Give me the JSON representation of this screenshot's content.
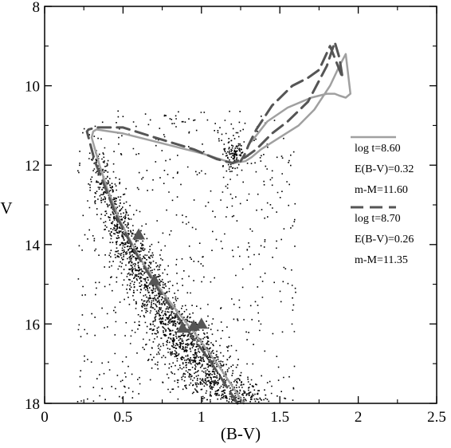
{
  "chart_data": {
    "type": "scatter",
    "title": "",
    "xlabel": "(B-V)",
    "ylabel": "V",
    "xlim": [
      0,
      2.5
    ],
    "ylim": [
      18,
      8
    ],
    "y_inverted": true,
    "grid": false,
    "legend_position": "right",
    "x_ticks": [
      0,
      0.5,
      1,
      1.5,
      2,
      2.5
    ],
    "x_tick_labels": [
      "0",
      "0.5",
      "1",
      "1.5",
      "2",
      "2.5"
    ],
    "y_ticks": [
      8,
      10,
      12,
      14,
      16,
      18
    ],
    "y_tick_labels": [
      "8",
      "10",
      "12",
      "14",
      "16",
      "18"
    ],
    "colors": {
      "isochrone_1": "#a0a0a0",
      "isochrone_2": "#555555",
      "stars": "#000000",
      "triangles": "#555555"
    },
    "stars": {
      "count": 2600,
      "main_sequence_ridge": [
        [
          0.3,
          11.2
        ],
        [
          0.38,
          12.5
        ],
        [
          0.5,
          13.7
        ],
        [
          0.62,
          14.7
        ],
        [
          0.75,
          15.6
        ],
        [
          0.9,
          16.5
        ],
        [
          1.05,
          17.3
        ],
        [
          1.25,
          18.0
        ]
      ],
      "red_clump_center": [
        1.2,
        11.7
      ]
    },
    "series": [
      {
        "legend": [
          "log t=8.60",
          "E(B-V)=0.32",
          "m-M=11.60"
        ],
        "style": "solid",
        "x": [
          1.27,
          1.1,
          0.95,
          0.75,
          0.6,
          0.48,
          0.4,
          0.35,
          0.3,
          0.31,
          0.33,
          0.5,
          0.75,
          1.0,
          1.2,
          1.28,
          1.32,
          1.38,
          1.5,
          1.62,
          1.72,
          1.82,
          1.88,
          1.92,
          1.95,
          1.92,
          1.88,
          1.85,
          1.8,
          1.7,
          1.55,
          1.42,
          1.32
        ],
        "y": [
          18.0,
          17.0,
          16.2,
          15.2,
          14.3,
          13.4,
          12.6,
          12.0,
          11.3,
          11.15,
          11.1,
          11.2,
          11.45,
          11.7,
          11.95,
          11.9,
          11.8,
          11.6,
          11.3,
          11.0,
          10.6,
          10.0,
          9.5,
          9.2,
          10.2,
          10.3,
          10.25,
          10.2,
          10.2,
          10.3,
          10.55,
          10.9,
          11.4
        ]
      },
      {
        "legend": [
          "log t=8.70",
          "E(B-V)=0.26",
          "m-M=11.35"
        ],
        "style": "dashed",
        "x": [
          1.23,
          1.05,
          0.9,
          0.72,
          0.58,
          0.46,
          0.38,
          0.32,
          0.27,
          0.28,
          0.33,
          0.5,
          0.7,
          0.95,
          1.1,
          1.2,
          1.28,
          1.35,
          1.45,
          1.55,
          1.68,
          1.8,
          1.85,
          1.88,
          1.9,
          1.85,
          1.82,
          1.75,
          1.68,
          1.58,
          1.45,
          1.35,
          1.3,
          1.28,
          1.25
        ],
        "y": [
          18.0,
          16.9,
          16.1,
          15.1,
          14.2,
          13.3,
          12.5,
          11.9,
          11.15,
          11.1,
          11.05,
          11.05,
          11.3,
          11.6,
          11.85,
          11.95,
          11.8,
          11.6,
          11.2,
          10.9,
          10.4,
          9.5,
          8.9,
          9.3,
          9.8,
          9.3,
          9.0,
          9.6,
          9.8,
          10.0,
          10.5,
          11.1,
          11.5,
          11.7,
          11.9
        ]
      }
    ],
    "triangles": [
      [
        0.6,
        13.75
      ],
      [
        0.7,
        14.9
      ],
      [
        0.88,
        16.1
      ],
      [
        0.95,
        16.05
      ],
      [
        1.0,
        16.0
      ]
    ]
  }
}
